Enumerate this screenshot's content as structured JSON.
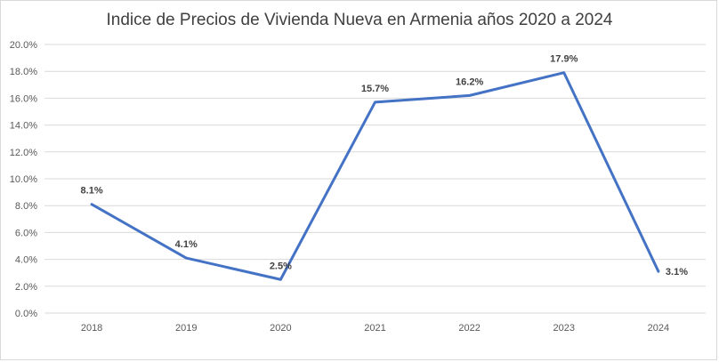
{
  "chart_data": {
    "type": "line",
    "title": "Indice de Precios de Vivienda Nueva en Armenia años 2020 a 2024",
    "xlabel": "",
    "ylabel": "",
    "categories": [
      "2018",
      "2019",
      "2020",
      "2021",
      "2022",
      "2023",
      "2024"
    ],
    "series": [
      {
        "values": [
          8.1,
          4.1,
          2.5,
          15.7,
          16.2,
          17.9,
          3.1
        ],
        "data_labels": [
          "8.1%",
          "4.1%",
          "2.5%",
          "15.7%",
          "16.2%",
          "17.9%",
          "3.1%"
        ],
        "color": "#4472c4"
      }
    ],
    "ylim": [
      0,
      20
    ],
    "y_ticks": [
      "0.0%",
      "2.0%",
      "4.0%",
      "6.0%",
      "8.0%",
      "10.0%",
      "12.0%",
      "14.0%",
      "16.0%",
      "18.0%",
      "20.0%"
    ],
    "grid": true,
    "legend": "none",
    "gridline_color": "#d9d9d9"
  }
}
